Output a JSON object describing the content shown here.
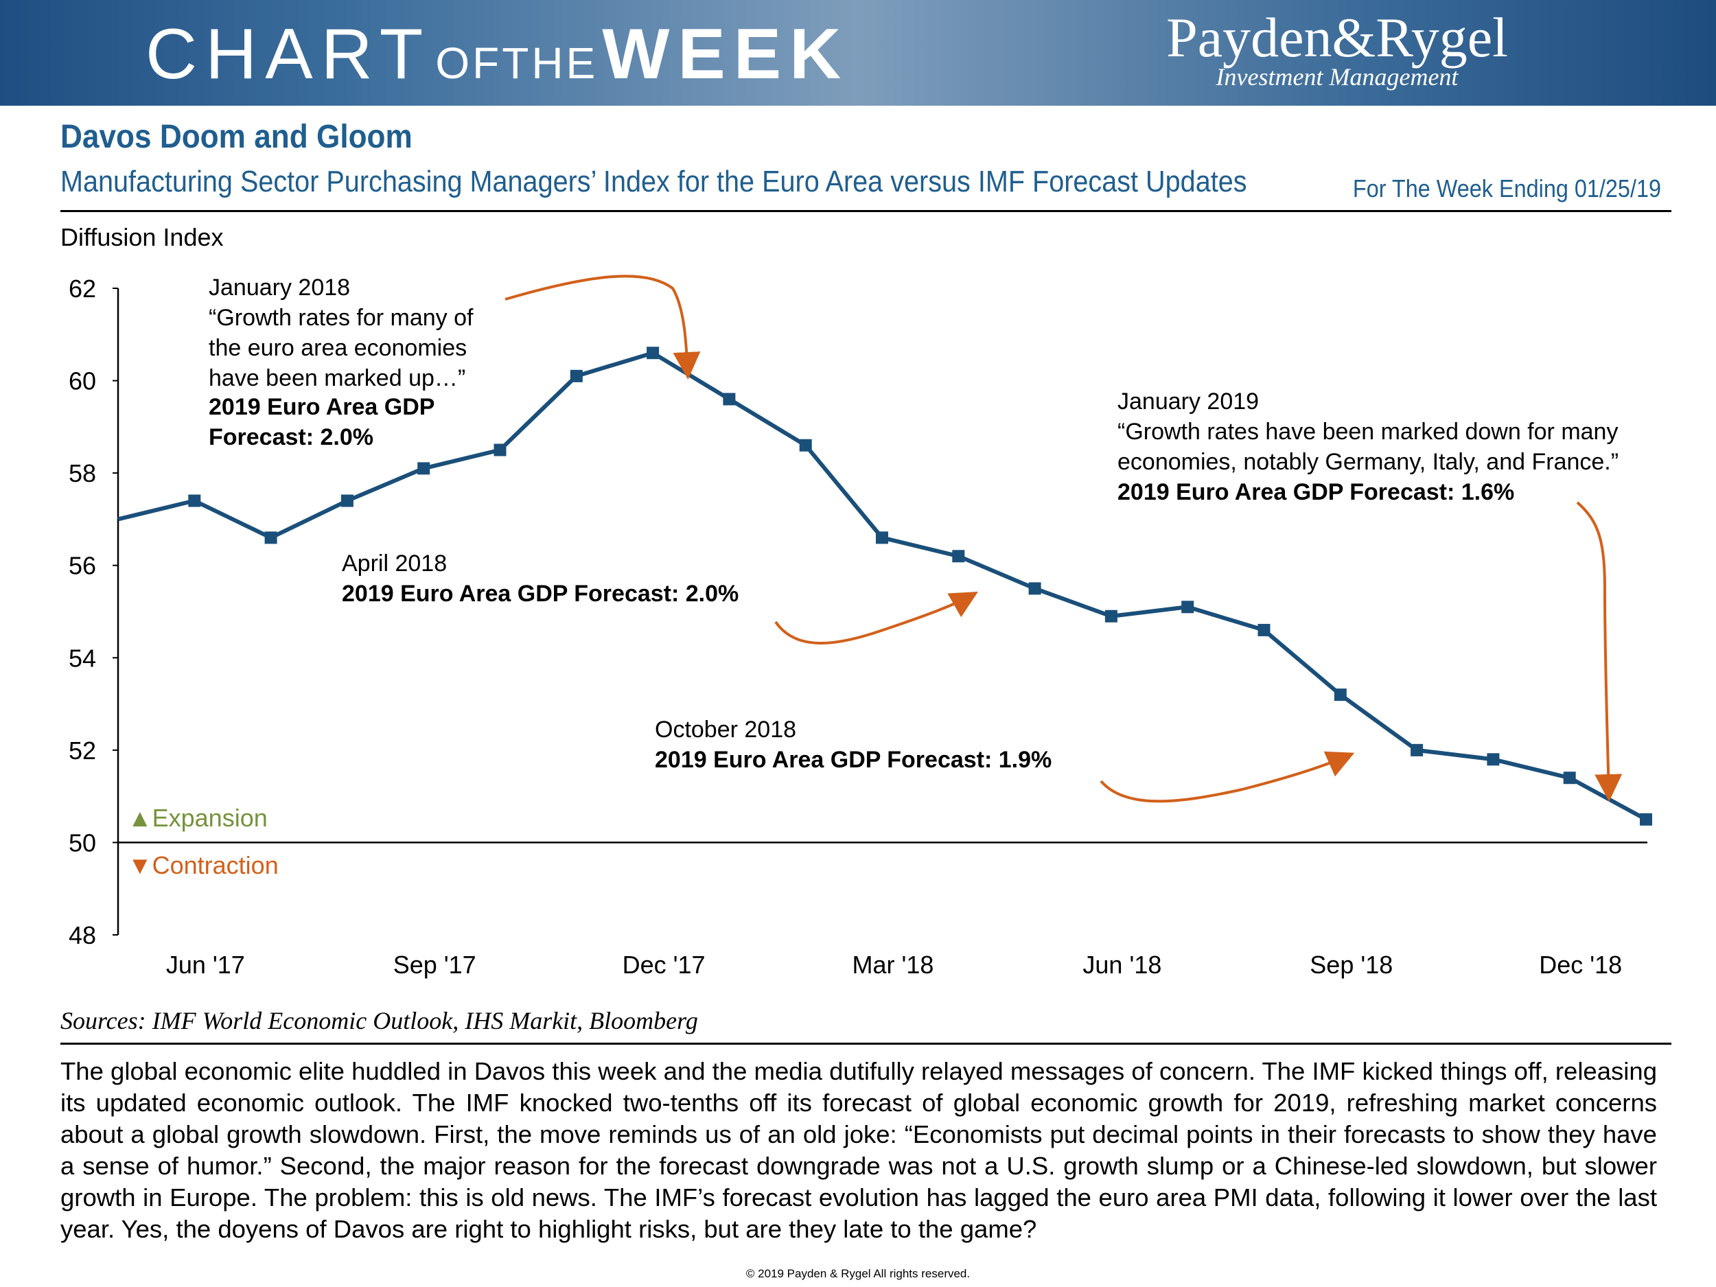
{
  "header": {
    "banner_chart": "CHART",
    "banner_ofthe": "OFTHE",
    "banner_week": "WEEK",
    "logo_name": "Payden&Rygel",
    "logo_tagline": "Investment Management",
    "title": "Davos Doom and Gloom",
    "subtitle": "Manufacturing Sector Purchasing Managers’ Index for the Euro Area versus IMF Forecast Updates",
    "week_ending": "For The Week Ending 01/25/19"
  },
  "colors": {
    "banner": "#2b5d8c",
    "title": "#1f5e8e",
    "line": "#1a4f7a",
    "arrow": "#d2601a",
    "expansion": "#76923c",
    "contraction": "#d2601a"
  },
  "chart_data": {
    "type": "line",
    "ylabel": "Diffusion Index",
    "ylim": [
      48,
      62
    ],
    "yticks": [
      48,
      50,
      52,
      54,
      56,
      58,
      60,
      62
    ],
    "x_tick_labels": [
      "Jun '17",
      "Sep '17",
      "Dec '17",
      "Mar '18",
      "Jun '18",
      "Sep '18",
      "Dec '18"
    ],
    "x_tick_indices": [
      1,
      4,
      7,
      10,
      13,
      16,
      19
    ],
    "series": [
      {
        "name": "Euro Area Manufacturing PMI",
        "months": [
          "May '17",
          "Jun '17",
          "Jul '17",
          "Aug '17",
          "Sep '17",
          "Oct '17",
          "Nov '17",
          "Dec '17",
          "Jan '18",
          "Feb '18",
          "Mar '18",
          "Apr '18",
          "May '18",
          "Jun '18",
          "Jul '18",
          "Aug '18",
          "Sep '18",
          "Oct '18",
          "Nov '18",
          "Dec '18",
          "Jan '19"
        ],
        "values": [
          57.0,
          57.4,
          56.6,
          57.4,
          58.1,
          58.5,
          60.1,
          60.6,
          59.6,
          58.6,
          56.6,
          56.2,
          55.5,
          54.9,
          55.1,
          54.6,
          53.2,
          52.0,
          51.8,
          51.4,
          50.5
        ]
      }
    ],
    "reference_line": 50,
    "expansion_label": "▲Expansion",
    "contraction_label": "▼Contraction",
    "annotations": [
      {
        "id": "jan2018",
        "lines": [
          "January 2018",
          "“Growth rates for many of",
          "the euro area economies",
          "have been marked up…”"
        ],
        "bold_lines": [
          "2019 Euro Area GDP",
          "Forecast: 2.0%"
        ]
      },
      {
        "id": "apr2018",
        "lines": [
          "April 2018"
        ],
        "bold_lines": [
          "2019 Euro Area GDP Forecast: 2.0%"
        ]
      },
      {
        "id": "oct2018",
        "lines": [
          "October 2018"
        ],
        "bold_lines": [
          "2019 Euro Area GDP Forecast: 1.9%"
        ]
      },
      {
        "id": "jan2019",
        "lines": [
          "January 2019",
          "“Growth rates have been marked down for many",
          "economies, notably Germany, Italy, and France.”"
        ],
        "bold_lines": [
          "2019 Euro Area GDP Forecast: 1.6%"
        ]
      }
    ]
  },
  "sources": "Sources: IMF World Economic Outlook, IHS Markit, Bloomberg",
  "body_text": "The global economic elite huddled in Davos this week and the media dutifully relayed messages of concern. The IMF kicked things off, releasing its updated economic outlook. The IMF knocked two-tenths off its forecast of global economic growth for 2019, refreshing market concerns about a global growth slowdown. First, the move reminds us of an old joke: “Economists put decimal points in their forecasts to show they have a sense of humor.” Second, the major reason for the forecast downgrade was not a U.S. growth slump or a Chinese-led slowdown, but slower growth in Europe. The problem: this is old news. The IMF’s forecast evolution has lagged the euro area PMI data, following it lower over the last year. Yes, the doyens of Davos are right to highlight risks, but are they late to the game?",
  "copyright": "© 2019 Payden & Rygel All rights reserved."
}
